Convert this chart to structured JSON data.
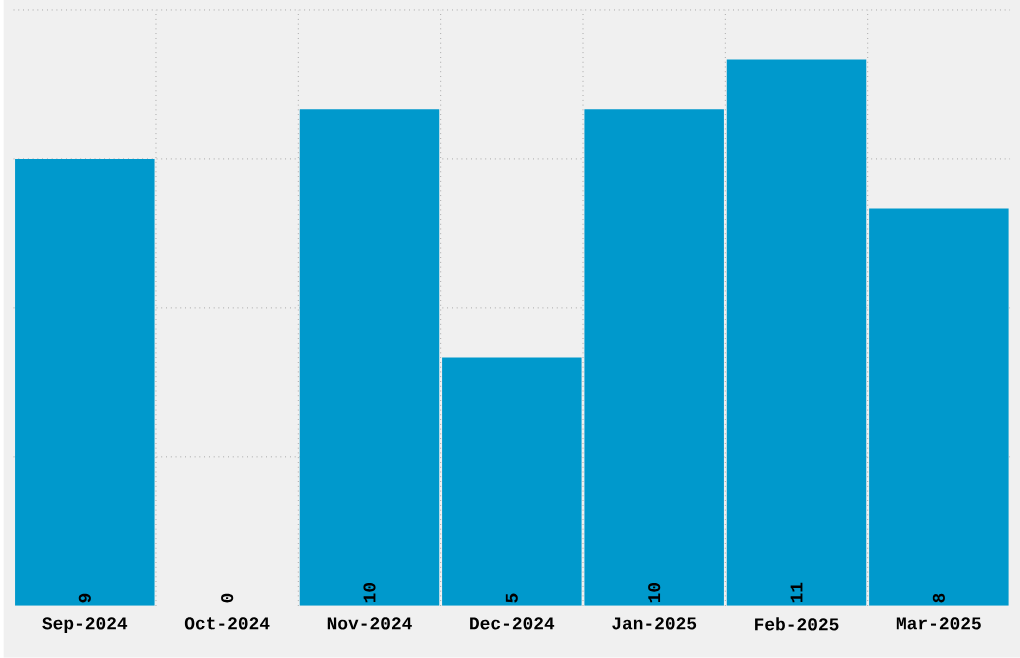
{
  "chart_data": {
    "type": "bar",
    "categories": [
      "Sep-2024",
      "Oct-2024",
      "Nov-2024",
      "Dec-2024",
      "Jan-2025",
      "Feb-2025",
      "Mar-2025"
    ],
    "values": [
      9,
      0,
      10,
      5,
      10,
      11,
      8
    ],
    "color": "#0099cc",
    "ylim": [
      0,
      12
    ],
    "yticks": [
      {
        "value": 3,
        "label": null
      },
      {
        "value": 6,
        "label": null
      },
      {
        "value": 9,
        "label": null
      },
      {
        "value": 12,
        "label": null
      }
    ],
    "tick_labels": "x",
    "grid": true,
    "data_labels": true
  }
}
